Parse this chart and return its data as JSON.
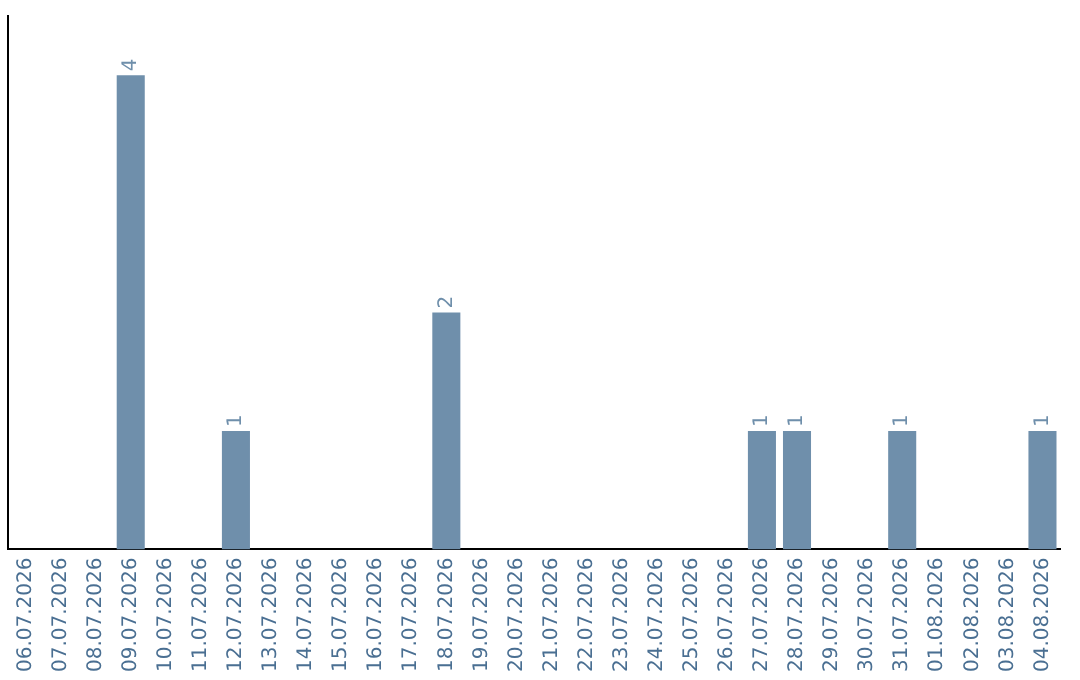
{
  "chart_data": {
    "type": "bar",
    "categories": [
      "06.07.2026",
      "07.07.2026",
      "08.07.2026",
      "09.07.2026",
      "10.07.2026",
      "11.07.2026",
      "12.07.2026",
      "13.07.2026",
      "14.07.2026",
      "15.07.2026",
      "16.07.2026",
      "17.07.2026",
      "18.07.2026",
      "19.07.2026",
      "20.07.2026",
      "21.07.2026",
      "22.07.2026",
      "23.07.2026",
      "24.07.2026",
      "25.07.2026",
      "26.07.2026",
      "27.07.2026",
      "28.07.2026",
      "29.07.2026",
      "30.07.2026",
      "31.07.2026",
      "01.08.2026",
      "02.08.2026",
      "03.08.2026",
      "04.08.2026"
    ],
    "values": [
      0,
      0,
      0,
      4,
      0,
      0,
      1,
      0,
      0,
      0,
      0,
      0,
      2,
      0,
      0,
      0,
      0,
      0,
      0,
      0,
      0,
      1,
      1,
      0,
      0,
      1,
      0,
      0,
      0,
      1
    ],
    "color": "#6f8fab",
    "value_labels": [
      null,
      null,
      null,
      "4",
      null,
      null,
      "1",
      null,
      null,
      null,
      null,
      null,
      "2",
      null,
      null,
      null,
      null,
      null,
      null,
      null,
      null,
      "1",
      "1",
      null,
      null,
      "1",
      null,
      null,
      null,
      "1"
    ],
    "tick_labels": "x",
    "grid": false,
    "legend": false
  }
}
